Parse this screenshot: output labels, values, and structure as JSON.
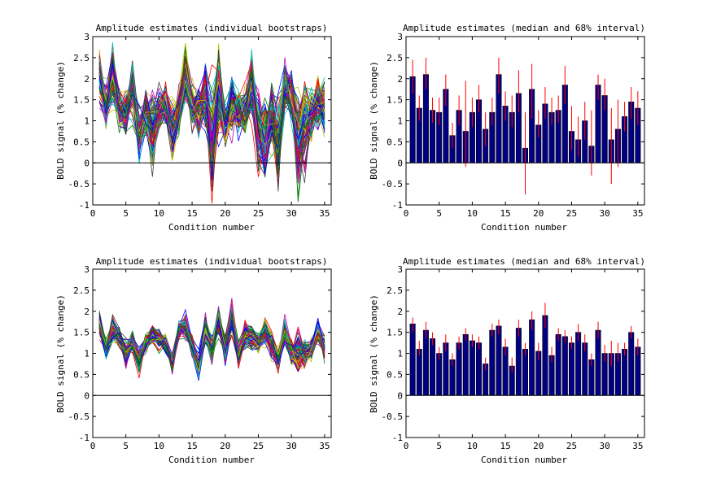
{
  "figure": {
    "panels": [
      {
        "title": "Amplitude estimates (individual bootstraps)",
        "xlabel": "Condition number",
        "ylabel": "BOLD signal (% change)"
      },
      {
        "title": "Amplitude estimates (median and 68% interval)",
        "xlabel": "Condition number",
        "ylabel": "BOLD signal (% change)"
      },
      {
        "title": "Amplitude estimates (individual bootstraps)",
        "xlabel": "Condition number",
        "ylabel": "BOLD signal (% change)"
      },
      {
        "title": "Amplitude estimates (median and 68% interval)",
        "xlabel": "Condition number",
        "ylabel": "BOLD signal (% change)"
      }
    ]
  },
  "chart_data": [
    {
      "type": "line",
      "title": "Amplitude estimates (individual bootstraps)",
      "xlabel": "Condition number",
      "ylabel": "BOLD signal (% change)",
      "xlim": [
        0,
        36
      ],
      "ylim": [
        -1,
        3
      ],
      "xticks": [
        0,
        5,
        10,
        15,
        20,
        25,
        30,
        35
      ],
      "yticks": [
        -1,
        -0.5,
        0,
        0.5,
        1,
        1.5,
        2,
        2.5,
        3
      ],
      "x": [
        1,
        2,
        3,
        4,
        5,
        6,
        7,
        8,
        9,
        10,
        11,
        12,
        13,
        14,
        15,
        16,
        17,
        18,
        19,
        20,
        21,
        22,
        23,
        24,
        25,
        26,
        27,
        28,
        29,
        30,
        31,
        32,
        33,
        34,
        35
      ],
      "center_values": [
        2.05,
        1.3,
        2.1,
        1.25,
        1.2,
        1.75,
        0.65,
        1.25,
        0.75,
        1.2,
        1.5,
        0.8,
        1.2,
        2.1,
        1.35,
        1.2,
        1.65,
        0.35,
        1.75,
        0.9,
        1.4,
        1.2,
        1.25,
        1.85,
        0.75,
        0.55,
        1.0,
        0.4,
        1.85,
        1.6,
        0.55,
        0.8,
        1.1,
        1.45,
        1.3
      ],
      "spread": [
        0.45,
        0.35,
        0.5,
        0.3,
        0.35,
        0.45,
        0.35,
        0.35,
        0.6,
        0.35,
        0.35,
        0.4,
        0.35,
        0.5,
        0.4,
        0.4,
        0.55,
        0.9,
        0.7,
        0.35,
        0.45,
        0.35,
        0.35,
        0.5,
        0.6,
        0.7,
        0.5,
        0.8,
        0.4,
        0.4,
        0.8,
        0.75,
        0.4,
        0.4,
        0.45
      ],
      "n_bootstraps": 100,
      "reference_line_y": 0,
      "grid": false,
      "colors": [
        "#0000ff",
        "#008000",
        "#ff0000",
        "#00bfbf",
        "#bf00bf",
        "#bfbf00",
        "#404040"
      ]
    },
    {
      "type": "bar",
      "title": "Amplitude estimates (median and 68% interval)",
      "xlabel": "Condition number",
      "ylabel": "BOLD signal (% change)",
      "xlim": [
        0,
        36
      ],
      "ylim": [
        -1,
        3
      ],
      "xticks": [
        0,
        5,
        10,
        15,
        20,
        25,
        30,
        35
      ],
      "yticks": [
        -1,
        -0.5,
        0,
        0.5,
        1,
        1.5,
        2,
        2.5,
        3
      ],
      "categories": [
        1,
        2,
        3,
        4,
        5,
        6,
        7,
        8,
        9,
        10,
        11,
        12,
        13,
        14,
        15,
        16,
        17,
        18,
        19,
        20,
        21,
        22,
        23,
        24,
        25,
        26,
        27,
        28,
        29,
        30,
        31,
        32,
        33,
        34,
        35
      ],
      "values": [
        2.05,
        1.3,
        2.1,
        1.25,
        1.2,
        1.75,
        0.65,
        1.25,
        0.75,
        1.2,
        1.5,
        0.8,
        1.2,
        2.1,
        1.35,
        1.2,
        1.65,
        0.35,
        1.75,
        0.9,
        1.4,
        1.2,
        1.25,
        1.85,
        0.75,
        0.55,
        1.0,
        0.4,
        1.85,
        1.6,
        0.55,
        0.8,
        1.1,
        1.45,
        1.3
      ],
      "err_low": [
        1.65,
        1.0,
        1.75,
        0.95,
        0.9,
        1.35,
        0.35,
        0.9,
        -0.1,
        0.85,
        1.2,
        0.4,
        0.9,
        1.65,
        1.0,
        0.85,
        1.2,
        -0.75,
        1.05,
        0.6,
        1.05,
        0.9,
        0.95,
        1.4,
        0.3,
        0.15,
        0.55,
        -0.3,
        1.5,
        1.25,
        -0.5,
        -0.1,
        0.75,
        1.05,
        0.9
      ],
      "err_high": [
        2.45,
        1.6,
        2.5,
        1.55,
        1.55,
        2.1,
        0.95,
        1.6,
        1.95,
        1.55,
        1.85,
        1.2,
        1.55,
        2.5,
        1.7,
        1.6,
        2.2,
        1.2,
        2.35,
        1.25,
        1.8,
        1.55,
        1.6,
        2.3,
        1.35,
        1.1,
        1.45,
        1.25,
        2.1,
        2.0,
        1.3,
        1.5,
        1.45,
        1.8,
        1.7
      ],
      "bar_color": "#000080",
      "error_color": "#ff0000",
      "grid": false
    },
    {
      "type": "line",
      "title": "Amplitude estimates (individual bootstraps)",
      "xlabel": "Condition number",
      "ylabel": "BOLD signal (% change)",
      "xlim": [
        0,
        36
      ],
      "ylim": [
        -1,
        3
      ],
      "xticks": [
        0,
        5,
        10,
        15,
        20,
        25,
        30,
        35
      ],
      "yticks": [
        -1,
        -0.5,
        0,
        0.5,
        1,
        1.5,
        2,
        2.5,
        3
      ],
      "x": [
        1,
        2,
        3,
        4,
        5,
        6,
        7,
        8,
        9,
        10,
        11,
        12,
        13,
        14,
        15,
        16,
        17,
        18,
        19,
        20,
        21,
        22,
        23,
        24,
        25,
        26,
        27,
        28,
        29,
        30,
        31,
        32,
        33,
        34,
        35
      ],
      "center_values": [
        1.7,
        1.1,
        1.55,
        1.35,
        1.0,
        1.25,
        0.85,
        1.25,
        1.45,
        1.3,
        1.25,
        0.75,
        1.55,
        1.65,
        1.15,
        0.7,
        1.6,
        1.1,
        1.8,
        1.05,
        1.9,
        0.95,
        1.45,
        1.4,
        1.25,
        1.5,
        1.25,
        0.85,
        1.55,
        1.0,
        1.0,
        1.0,
        1.1,
        1.5,
        1.15
      ],
      "spread": [
        0.2,
        0.15,
        0.2,
        0.15,
        0.2,
        0.15,
        0.2,
        0.15,
        0.15,
        0.15,
        0.15,
        0.15,
        0.15,
        0.2,
        0.2,
        0.2,
        0.2,
        0.2,
        0.25,
        0.2,
        0.3,
        0.2,
        0.2,
        0.2,
        0.15,
        0.2,
        0.2,
        0.2,
        0.2,
        0.2,
        0.35,
        0.25,
        0.15,
        0.2,
        0.2
      ],
      "n_bootstraps": 100,
      "reference_line_y": 0,
      "grid": false,
      "colors": [
        "#0000ff",
        "#008000",
        "#ff0000",
        "#00bfbf",
        "#bf00bf",
        "#bfbf00",
        "#404040"
      ]
    },
    {
      "type": "bar",
      "title": "Amplitude estimates (median and 68% interval)",
      "xlabel": "Condition number",
      "ylabel": "BOLD signal (% change)",
      "xlim": [
        0,
        36
      ],
      "ylim": [
        -1,
        3
      ],
      "xticks": [
        0,
        5,
        10,
        15,
        20,
        25,
        30,
        35
      ],
      "yticks": [
        -1,
        -0.5,
        0,
        0.5,
        1,
        1.5,
        2,
        2.5,
        3
      ],
      "categories": [
        1,
        2,
        3,
        4,
        5,
        6,
        7,
        8,
        9,
        10,
        11,
        12,
        13,
        14,
        15,
        16,
        17,
        18,
        19,
        20,
        21,
        22,
        23,
        24,
        25,
        26,
        27,
        28,
        29,
        30,
        31,
        32,
        33,
        34,
        35
      ],
      "values": [
        1.7,
        1.1,
        1.55,
        1.35,
        1.0,
        1.25,
        0.85,
        1.25,
        1.45,
        1.3,
        1.25,
        0.75,
        1.55,
        1.65,
        1.15,
        0.7,
        1.6,
        1.1,
        1.8,
        1.05,
        1.9,
        0.95,
        1.45,
        1.4,
        1.25,
        1.5,
        1.25,
        0.85,
        1.55,
        1.0,
        1.0,
        1.0,
        1.1,
        1.5,
        1.15
      ],
      "err_low": [
        1.5,
        0.95,
        1.35,
        1.2,
        0.85,
        1.05,
        0.7,
        1.1,
        1.3,
        1.15,
        1.1,
        0.6,
        1.4,
        1.45,
        0.95,
        0.55,
        1.4,
        0.95,
        1.55,
        0.85,
        1.6,
        0.8,
        1.3,
        1.25,
        1.1,
        1.3,
        1.05,
        0.7,
        1.35,
        0.8,
        0.7,
        0.8,
        0.95,
        1.35,
        0.95
      ],
      "err_high": [
        1.85,
        1.3,
        1.75,
        1.5,
        1.15,
        1.45,
        1.0,
        1.4,
        1.6,
        1.45,
        1.4,
        0.9,
        1.7,
        1.8,
        1.35,
        0.9,
        1.8,
        1.25,
        2.0,
        1.25,
        2.2,
        1.15,
        1.6,
        1.55,
        1.4,
        1.7,
        1.45,
        1.0,
        1.75,
        1.2,
        1.3,
        1.25,
        1.25,
        1.65,
        1.35
      ],
      "bar_color": "#000080",
      "error_color": "#ff0000",
      "grid": false
    }
  ]
}
